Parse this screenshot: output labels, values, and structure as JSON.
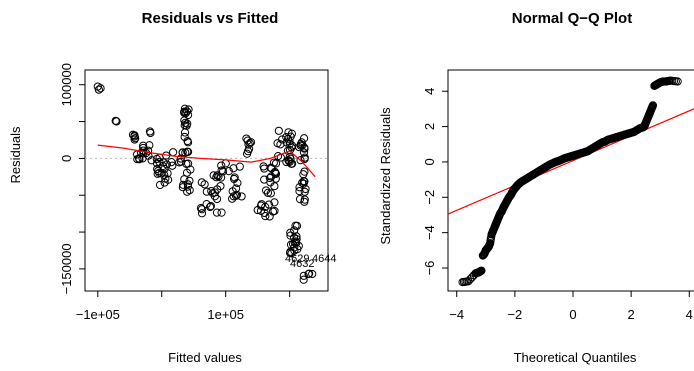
{
  "chart_data": [
    {
      "type": "scatter",
      "title": "Residuals vs Fitted",
      "xlabel": "Fitted values",
      "ylabel": "Residuals",
      "xlim": [
        -120000,
        260000
      ],
      "ylim": [
        -180000,
        120000
      ],
      "xticks": [
        {
          "v": -100000,
          "label": "−1e+05"
        },
        {
          "v": 100000,
          "label": "1e+05"
        }
      ],
      "xminor": [
        0,
        200000
      ],
      "yticks": [
        {
          "v": -150000,
          "label": "−150000"
        },
        {
          "v": 0,
          "label": "0"
        },
        {
          "v": 100000,
          "label": "100000"
        }
      ],
      "yminor": [
        -100000,
        -50000,
        50000
      ],
      "colors": {
        "points": "#000000",
        "smooth": "#ff0000",
        "refline": "#bbbbbb"
      },
      "reference_line": 0,
      "clusters": [
        {
          "x": [
            -100000,
            -94000
          ],
          "y": [
            92000,
            98000
          ],
          "n": 3
        },
        {
          "x": [
            -73000,
            -70000
          ],
          "y": [
            48000,
            52000
          ],
          "n": 2
        },
        {
          "x": [
            -48000,
            -40000
          ],
          "y": [
            25000,
            35000
          ],
          "n": 5
        },
        {
          "x": [
            -40000,
            -28000
          ],
          "y": [
            -10000,
            20000
          ],
          "n": 10
        },
        {
          "x": [
            -25000,
            -15000
          ],
          "y": [
            -5000,
            40000
          ],
          "n": 7
        },
        {
          "x": [
            -10000,
            -3000
          ],
          "y": [
            -30000,
            25000
          ],
          "n": 6
        },
        {
          "x": [
            -5000,
            10000
          ],
          "y": [
            -40000,
            10000
          ],
          "n": 14
        },
        {
          "x": [
            15000,
            35000
          ],
          "y": [
            -10000,
            10000
          ],
          "n": 8
        },
        {
          "x": [
            35000,
            42000
          ],
          "y": [
            -10000,
            70000
          ],
          "n": 22
        },
        {
          "x": [
            30000,
            45000
          ],
          "y": [
            -50000,
            -15000
          ],
          "n": 10
        },
        {
          "x": [
            60000,
            95000
          ],
          "y": [
            -75000,
            -20000
          ],
          "n": 22
        },
        {
          "x": [
            90000,
            105000
          ],
          "y": [
            -30000,
            0
          ],
          "n": 6
        },
        {
          "x": [
            110000,
            125000
          ],
          "y": [
            -55000,
            -10000
          ],
          "n": 12
        },
        {
          "x": [
            130000,
            140000
          ],
          "y": [
            -10000,
            30000
          ],
          "n": 8
        },
        {
          "x": [
            150000,
            180000
          ],
          "y": [
            -80000,
            -5000
          ],
          "n": 30
        },
        {
          "x": [
            180000,
            205000
          ],
          "y": [
            -10000,
            40000
          ],
          "n": 26
        },
        {
          "x": [
            200000,
            215000
          ],
          "y": [
            -130000,
            -90000
          ],
          "n": 20
        },
        {
          "x": [
            215000,
            225000
          ],
          "y": [
            -60000,
            30000
          ],
          "n": 26
        },
        {
          "x": [
            218000,
            238000
          ],
          "y": [
            -165000,
            -155000
          ],
          "n": 5
        }
      ],
      "smooth": {
        "x": [
          -100000,
          -60000,
          -20000,
          20000,
          60000,
          100000,
          140000,
          170000,
          200000,
          220000,
          240000
        ],
        "y": [
          18000,
          14000,
          8000,
          3000,
          0,
          -2000,
          -5000,
          0,
          10000,
          -5000,
          -25000
        ]
      },
      "point_labels": [
        {
          "text": "4644",
          "x": 238000,
          "y": -153000
        },
        {
          "text": "4629",
          "x": 214000,
          "y": -160000
        },
        {
          "text": "4632",
          "x": 220000,
          "y": -160000
        }
      ]
    },
    {
      "type": "scatter",
      "title": "Normal Q−Q Plot",
      "xlabel": "Theoretical Quantiles",
      "ylabel": "Standardized Residuals",
      "xlim": [
        -4.3,
        4.3
      ],
      "ylim": [
        -7.3,
        5.2
      ],
      "xticks": [
        {
          "v": -4,
          "label": "−4"
        },
        {
          "v": -2,
          "label": "−2"
        },
        {
          "v": 0,
          "label": "0"
        },
        {
          "v": 2,
          "label": "2"
        },
        {
          "v": 4,
          "label": "4"
        }
      ],
      "yticks": [
        {
          "v": -6,
          "label": "−6"
        },
        {
          "v": -4,
          "label": "−4"
        },
        {
          "v": -2,
          "label": "−2"
        },
        {
          "v": 0,
          "label": "0"
        },
        {
          "v": 2,
          "label": "2"
        },
        {
          "v": 4,
          "label": "4"
        }
      ],
      "colors": {
        "points": "#000000",
        "qqline": "#ff0000"
      },
      "qqline": {
        "x": [
          -4.3,
          4.3
        ],
        "y": [
          -2.95,
          3.1
        ]
      },
      "qq_points": {
        "x": [
          -3.8,
          -3.6,
          -3.35,
          -3.25,
          -3.2,
          -3.15,
          -3.1,
          -3.05,
          -3.0,
          -2.95,
          -2.9,
          -2.85,
          -2.8,
          -2.75,
          -2.7,
          -2.65,
          -2.6,
          -2.55,
          -2.5,
          -2.45,
          -2.4,
          -2.35,
          -2.3,
          -2.25,
          -2.2,
          -2.15,
          -2.1,
          -2.05,
          -2.0,
          -1.95,
          -1.9,
          -1.8,
          -1.7,
          -1.6,
          -1.5,
          -1.4,
          -1.3,
          -1.2,
          -1.1,
          -1.0,
          -0.9,
          -0.8,
          -0.7,
          -0.6,
          -0.5,
          -0.4,
          -0.3,
          -0.2,
          -0.1,
          0.0,
          0.1,
          0.2,
          0.3,
          0.4,
          0.5,
          0.6,
          0.7,
          0.8,
          0.9,
          1.0,
          1.1,
          1.2,
          1.3,
          1.4,
          1.5,
          1.6,
          1.7,
          1.8,
          1.9,
          2.0,
          2.1,
          2.2,
          2.3,
          2.4,
          2.45,
          2.5,
          2.55,
          2.6,
          2.65,
          2.7,
          2.75,
          2.8,
          2.85,
          2.9,
          3.0,
          3.1,
          3.2,
          3.35,
          3.6
        ],
        "y": [
          -6.8,
          -6.75,
          -6.3,
          -6.25,
          -6.2,
          -6.15,
          -5.3,
          -5.2,
          -5.0,
          -4.9,
          -4.8,
          -4.6,
          -4.1,
          -3.9,
          -3.7,
          -3.5,
          -3.3,
          -3.1,
          -2.9,
          -2.8,
          -2.6,
          -2.45,
          -2.3,
          -2.15,
          -2.0,
          -1.9,
          -1.75,
          -1.6,
          -1.5,
          -1.4,
          -1.3,
          -1.15,
          -1.05,
          -0.95,
          -0.85,
          -0.75,
          -0.65,
          -0.55,
          -0.45,
          -0.35,
          -0.25,
          -0.15,
          -0.08,
          0.0,
          0.05,
          0.12,
          0.2,
          0.25,
          0.3,
          0.35,
          0.4,
          0.45,
          0.5,
          0.55,
          0.6,
          0.7,
          0.8,
          0.9,
          1.0,
          1.1,
          1.15,
          1.25,
          1.3,
          1.35,
          1.4,
          1.45,
          1.5,
          1.55,
          1.6,
          1.65,
          1.7,
          1.8,
          1.9,
          1.95,
          2.0,
          2.2,
          2.4,
          2.6,
          2.8,
          3.0,
          3.2,
          4.3,
          4.35,
          4.4,
          4.5,
          4.55,
          4.55,
          4.6,
          4.55
        ]
      }
    }
  ]
}
